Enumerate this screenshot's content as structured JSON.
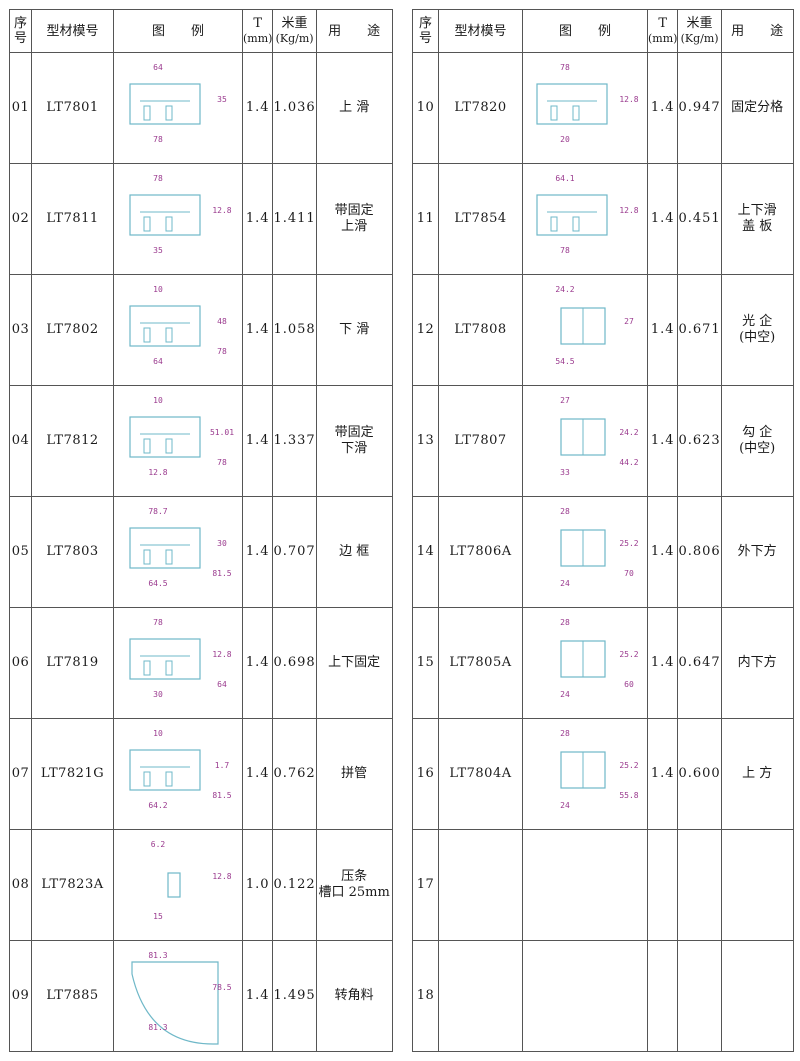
{
  "header": {
    "seq": "序\n号",
    "model": "型材模号",
    "diagram": "图　　例",
    "thickness_t": "T",
    "thickness_unit": "(mm)",
    "weight": "米重",
    "weight_unit": "(Kg/m)",
    "usage": "用　　途"
  },
  "left_rows": [
    {
      "seq": "01",
      "model": "LT7801",
      "t": "1.4",
      "w": "1.036",
      "use": "上 滑",
      "dims": [
        "64",
        "35",
        "78"
      ]
    },
    {
      "seq": "02",
      "model": "LT7811",
      "t": "1.4",
      "w": "1.411",
      "use": "带固定\n上滑",
      "dims": [
        "78",
        "12.8",
        "35"
      ]
    },
    {
      "seq": "03",
      "model": "LT7802",
      "t": "1.4",
      "w": "1.058",
      "use": "下 滑",
      "dims": [
        "10",
        "48",
        "64",
        "78"
      ]
    },
    {
      "seq": "04",
      "model": "LT7812",
      "t": "1.4",
      "w": "1.337",
      "use": "带固定\n下滑",
      "dims": [
        "10",
        "51.01",
        "12.8",
        "78"
      ]
    },
    {
      "seq": "05",
      "model": "LT7803",
      "t": "1.4",
      "w": "0.707",
      "use": "边 框",
      "dims": [
        "78.7",
        "30",
        "64.5",
        "81.5"
      ]
    },
    {
      "seq": "06",
      "model": "LT7819",
      "t": "1.4",
      "w": "0.698",
      "use": "上下固定",
      "dims": [
        "78",
        "12.8",
        "30",
        "64"
      ]
    },
    {
      "seq": "07",
      "model": "LT7821G",
      "t": "1.4",
      "w": "0.762",
      "use": "拼管",
      "dims": [
        "10",
        "1.7",
        "64.2",
        "81.5"
      ]
    },
    {
      "seq": "08",
      "model": "LT7823A",
      "t": "1.0",
      "w": "0.122",
      "use": "压条\n槽口 25mm",
      "dims": [
        "6.2",
        "12.8",
        "15"
      ]
    },
    {
      "seq": "09",
      "model": "LT7885",
      "t": "1.4",
      "w": "1.495",
      "use": "转角料",
      "dims": [
        "81.3",
        "78.5",
        "81.3"
      ]
    }
  ],
  "right_rows": [
    {
      "seq": "10",
      "model": "LT7820",
      "t": "1.4",
      "w": "0.947",
      "use": "固定分格",
      "dims": [
        "78",
        "12.8",
        "20"
      ]
    },
    {
      "seq": "11",
      "model": "LT7854",
      "t": "1.4",
      "w": "0.451",
      "use": "上下滑\n盖 板",
      "dims": [
        "64.1",
        "12.8",
        "78"
      ]
    },
    {
      "seq": "12",
      "model": "LT7808",
      "t": "1.4",
      "w": "0.671",
      "use": "光 企\n(中空)",
      "dims": [
        "24.2",
        "27",
        "54.5"
      ]
    },
    {
      "seq": "13",
      "model": "LT7807",
      "t": "1.4",
      "w": "0.623",
      "use": "勾 企\n(中空)",
      "dims": [
        "27",
        "24.2",
        "33",
        "44.2"
      ]
    },
    {
      "seq": "14",
      "model": "LT7806A",
      "t": "1.4",
      "w": "0.806",
      "use": "外下方",
      "dims": [
        "28",
        "25.2",
        "24",
        "70"
      ]
    },
    {
      "seq": "15",
      "model": "LT7805A",
      "t": "1.4",
      "w": "0.647",
      "use": "内下方",
      "dims": [
        "28",
        "25.2",
        "24",
        "60"
      ]
    },
    {
      "seq": "16",
      "model": "LT7804A",
      "t": "1.4",
      "w": "0.600",
      "use": "上 方",
      "dims": [
        "28",
        "25.2",
        "24",
        "55.8"
      ]
    },
    {
      "seq": "17",
      "model": "",
      "t": "",
      "w": "",
      "use": "",
      "dims": []
    },
    {
      "seq": "18",
      "model": "",
      "t": "",
      "w": "",
      "use": "",
      "dims": []
    }
  ],
  "colors": {
    "border": "#555555",
    "profile_stroke": "#6fb8c8",
    "dim_color": "#9a3a8e"
  }
}
